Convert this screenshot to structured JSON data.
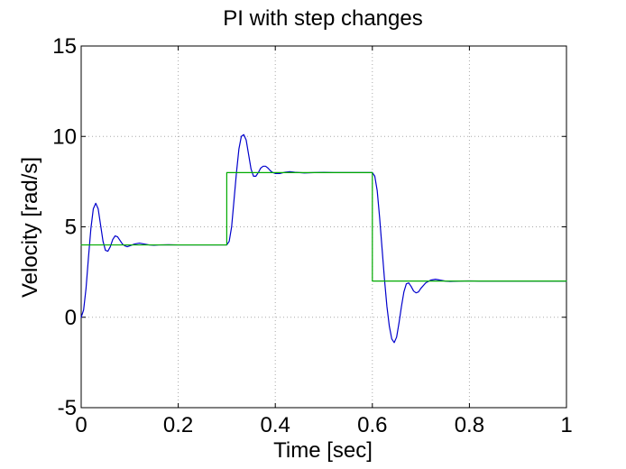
{
  "chart_data": {
    "type": "line",
    "title": "PI with step changes",
    "xlabel": "Time [sec]",
    "ylabel": "Velocity [rad/s]",
    "xlim": [
      0,
      1
    ],
    "ylim": [
      -5,
      15
    ],
    "xticks": [
      0,
      0.2,
      0.4,
      0.6,
      0.8,
      1
    ],
    "xtick_labels": [
      "0",
      "0.2",
      "0.4",
      "0.6",
      "0.8",
      "1"
    ],
    "yticks": [
      -5,
      0,
      5,
      10,
      15
    ],
    "ytick_labels": [
      "-5",
      "0",
      "5",
      "10",
      "15"
    ],
    "grid": true,
    "series": [
      {
        "color": "#0000cc",
        "x": [
          0,
          0.005,
          0.01,
          0.015,
          0.02,
          0.025,
          0.03,
          0.035,
          0.04,
          0.045,
          0.05,
          0.055,
          0.06,
          0.065,
          0.07,
          0.075,
          0.08,
          0.085,
          0.09,
          0.095,
          0.1,
          0.11,
          0.12,
          0.13,
          0.14,
          0.15,
          0.16,
          0.18,
          0.2,
          0.22,
          0.24,
          0.26,
          0.28,
          0.3,
          0.305,
          0.31,
          0.315,
          0.32,
          0.325,
          0.33,
          0.335,
          0.34,
          0.345,
          0.35,
          0.355,
          0.36,
          0.365,
          0.37,
          0.375,
          0.38,
          0.385,
          0.39,
          0.395,
          0.4,
          0.41,
          0.42,
          0.43,
          0.44,
          0.45,
          0.46,
          0.48,
          0.5,
          0.52,
          0.54,
          0.56,
          0.58,
          0.6,
          0.605,
          0.61,
          0.615,
          0.62,
          0.625,
          0.63,
          0.635,
          0.64,
          0.645,
          0.65,
          0.655,
          0.66,
          0.665,
          0.67,
          0.675,
          0.68,
          0.685,
          0.69,
          0.695,
          0.7,
          0.71,
          0.72,
          0.73,
          0.74,
          0.75,
          0.76,
          0.78,
          0.8,
          0.82,
          0.84,
          0.86,
          0.88,
          0.9,
          0.92,
          0.94,
          0.96,
          0.98,
          1.0
        ],
        "values": [
          0,
          0.4,
          1.6,
          3.3,
          4.9,
          6.0,
          6.3,
          6.0,
          5.1,
          4.2,
          3.7,
          3.65,
          3.9,
          4.3,
          4.5,
          4.45,
          4.25,
          4.05,
          3.95,
          3.9,
          3.95,
          4.05,
          4.1,
          4.05,
          4.0,
          3.98,
          4.0,
          4.01,
          4.0,
          4.0,
          4.0,
          4.0,
          4.0,
          4.0,
          4.2,
          5.0,
          6.5,
          8.0,
          9.3,
          10.0,
          10.1,
          9.8,
          9.0,
          8.2,
          7.8,
          7.8,
          8.0,
          8.25,
          8.35,
          8.35,
          8.25,
          8.1,
          8.0,
          7.95,
          7.95,
          8.02,
          8.05,
          8.02,
          8.0,
          7.98,
          8.0,
          8.01,
          8.0,
          8.0,
          8.0,
          8.0,
          8.0,
          7.8,
          7.0,
          5.5,
          3.8,
          2.1,
          0.6,
          -0.5,
          -1.2,
          -1.4,
          -1.1,
          -0.3,
          0.6,
          1.4,
          1.85,
          1.9,
          1.7,
          1.45,
          1.35,
          1.4,
          1.6,
          1.9,
          2.05,
          2.1,
          2.05,
          2.0,
          1.98,
          2.0,
          2.01,
          2.0,
          2.0,
          2.0,
          2.0,
          2.0,
          2.0,
          2.0,
          2.0,
          2.0,
          2.0
        ]
      },
      {
        "color": "#00aa00",
        "x": [
          0,
          0.3,
          0.3,
          0.6,
          0.6,
          1.0
        ],
        "values": [
          4,
          4,
          8,
          8,
          2,
          2
        ]
      }
    ]
  }
}
